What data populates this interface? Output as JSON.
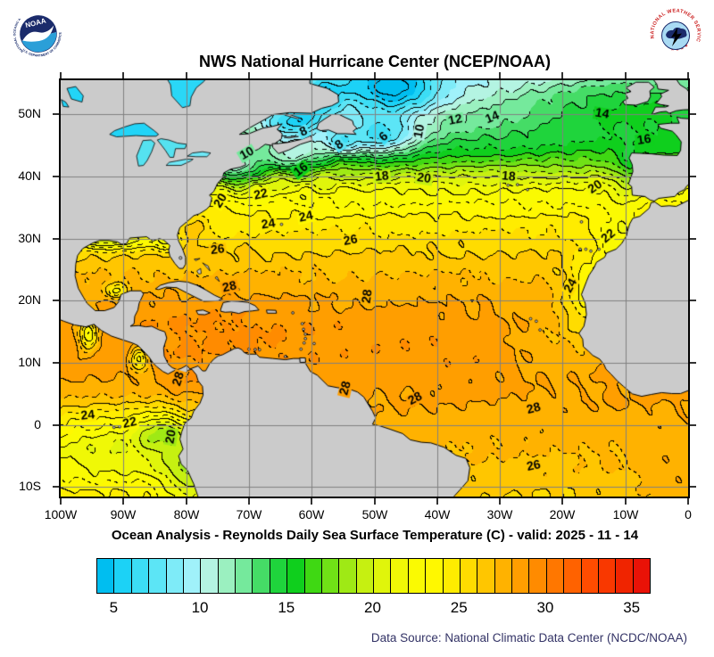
{
  "header": {
    "title": "NWS National Hurricane Center (NCEP/NOAA)"
  },
  "logos": {
    "noaa_label": "NOAA",
    "noaa_ring_top": "NATIONAL OCEANIC AND ATMOSPHERIC ADMINISTRATION",
    "noaa_ring_bottom": "U.S. DEPARTMENT OF COMMERCE",
    "nws_ring": "NATIONAL WEATHER SERVICE",
    "nws_stars": "★ ★ ★ ★"
  },
  "axes": {
    "lon_ticks": [
      {
        "label": "100W",
        "lon": -100
      },
      {
        "label": "90W",
        "lon": -90
      },
      {
        "label": "80W",
        "lon": -80
      },
      {
        "label": "70W",
        "lon": -70
      },
      {
        "label": "60W",
        "lon": -60
      },
      {
        "label": "50W",
        "lon": -50
      },
      {
        "label": "40W",
        "lon": -40
      },
      {
        "label": "30W",
        "lon": -30
      },
      {
        "label": "20W",
        "lon": -20
      },
      {
        "label": "10W",
        "lon": -10
      },
      {
        "label": "0",
        "lon": 0
      }
    ],
    "lat_ticks": [
      {
        "label": "50N",
        "lat": 50
      },
      {
        "label": "40N",
        "lat": 40
      },
      {
        "label": "30N",
        "lat": 30
      },
      {
        "label": "20N",
        "lat": 20
      },
      {
        "label": "10N",
        "lat": 10
      },
      {
        "label": "0",
        "lat": 0
      },
      {
        "label": "10S",
        "lat": -10
      }
    ]
  },
  "caption": "Ocean Analysis - Reynolds Daily Sea Surface Temperature (C) - valid: 2025 - 11 - 14",
  "source": "Data Source: National Climatic Data Center (NCDC/NOAA)",
  "colorbar": {
    "min": 4,
    "max": 36,
    "step": 1,
    "tick_values": [
      5,
      10,
      15,
      20,
      25,
      30,
      35
    ],
    "colors": [
      "#00BEF0",
      "#1CD2F6",
      "#3CDDF5",
      "#5CE5F6",
      "#7EEBF8",
      "#A0F1FA",
      "#B4F4E2",
      "#9BF0C0",
      "#75E99C",
      "#45DC66",
      "#1FD43C",
      "#0FCF1D",
      "#3FD813",
      "#70E116",
      "#9FE915",
      "#C6F011",
      "#E0F50B",
      "#F0F806",
      "#FAFA02",
      "#FFF800",
      "#FFEC00",
      "#FFDC00",
      "#FFC600",
      "#FFB200",
      "#FF9E00",
      "#FF8B00",
      "#FF7700",
      "#FF6200",
      "#FF4C00",
      "#F93800",
      "#F02400",
      "#E91207"
    ]
  },
  "chart_data": {
    "type": "contour_map",
    "title": "NWS National Hurricane Center (NCEP/NOAA)",
    "subtitle": "Ocean Analysis - Reynolds Daily Sea Surface Temperature (C) - valid: 2025 - 11 - 14",
    "units": "C",
    "lon_range": [
      -100,
      0
    ],
    "lat_range": [
      -11.6,
      55.5
    ],
    "contour_interval": 1,
    "labeled_interval": 2,
    "colorbar_ticks": [
      5,
      10,
      15,
      20,
      25,
      30,
      35
    ],
    "isotherm_labels": [
      {
        "value": 6,
        "lon": -48.5,
        "lat": 46.4,
        "rot": -42
      },
      {
        "value": 8,
        "lon": -61.3,
        "lat": 47.2,
        "rot": -25
      },
      {
        "value": 8,
        "lon": -55.6,
        "lat": 45.1,
        "rot": -35
      },
      {
        "value": 10,
        "lon": -42.8,
        "lat": 47.3,
        "rot": -80
      },
      {
        "value": 10,
        "lon": -70.3,
        "lat": 43.7,
        "rot": -30
      },
      {
        "value": 12,
        "lon": -37.1,
        "lat": 49.1,
        "rot": -12
      },
      {
        "value": 14,
        "lon": -31.2,
        "lat": 49.5,
        "rot": -22
      },
      {
        "value": 14,
        "lon": -13.7,
        "lat": 50.1,
        "rot": 10
      },
      {
        "value": 16,
        "lon": -61.7,
        "lat": 41.1,
        "rot": -38
      },
      {
        "value": 16,
        "lon": -7.0,
        "lat": 45.9,
        "rot": -8
      },
      {
        "value": 18,
        "lon": -48.8,
        "lat": 40.0,
        "rot": -6
      },
      {
        "value": 18,
        "lon": -28.6,
        "lat": 40.0,
        "rot": 5
      },
      {
        "value": 20,
        "lon": -42.1,
        "lat": 39.7,
        "rot": 8
      },
      {
        "value": 20,
        "lon": -74.5,
        "lat": 36.1,
        "rot": -58
      },
      {
        "value": 20,
        "lon": -14.8,
        "lat": 38.3,
        "rot": -35
      },
      {
        "value": 22,
        "lon": -68.1,
        "lat": 37.1,
        "rot": -12
      },
      {
        "value": 22,
        "lon": -12.7,
        "lat": 30.4,
        "rot": -40
      },
      {
        "value": 24,
        "lon": -66.9,
        "lat": 32.3,
        "rot": -8
      },
      {
        "value": 24,
        "lon": -60.9,
        "lat": 33.5,
        "rot": -12
      },
      {
        "value": 24,
        "lon": -18.7,
        "lat": 22.4,
        "rot": -62
      },
      {
        "value": 26,
        "lon": -75.0,
        "lat": 28.2,
        "rot": -6
      },
      {
        "value": 26,
        "lon": -53.8,
        "lat": 29.7,
        "rot": -10
      },
      {
        "value": 26,
        "lon": -24.6,
        "lat": -6.6,
        "rot": -12
      },
      {
        "value": 28,
        "lon": -73.1,
        "lat": 22.2,
        "rot": -12
      },
      {
        "value": 28,
        "lon": -51.1,
        "lat": 20.7,
        "rot": -82
      },
      {
        "value": 28,
        "lon": -81.2,
        "lat": 7.4,
        "rot": -72
      },
      {
        "value": 28,
        "lon": -54.6,
        "lat": 5.9,
        "rot": -76
      },
      {
        "value": 28,
        "lon": -43.5,
        "lat": 4.2,
        "rot": -28
      },
      {
        "value": 28,
        "lon": -24.6,
        "lat": 2.6,
        "rot": -15
      },
      {
        "value": 24,
        "lon": -95.7,
        "lat": 1.5,
        "rot": -6
      },
      {
        "value": 22,
        "lon": -89.0,
        "lat": 0.3,
        "rot": -12
      },
      {
        "value": 20,
        "lon": -82.4,
        "lat": -1.9,
        "rot": -80
      }
    ]
  }
}
